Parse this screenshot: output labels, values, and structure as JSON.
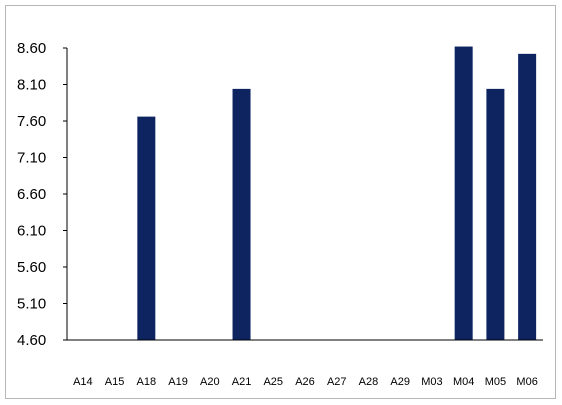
{
  "chart_data": {
    "type": "bar",
    "title": "",
    "xlabel": "",
    "ylabel": "",
    "ylim": [
      4.6,
      8.6
    ],
    "yticks": [
      "4.60",
      "5.10",
      "5.60",
      "6.10",
      "6.60",
      "7.10",
      "7.60",
      "8.10",
      "8.60"
    ],
    "grid": false,
    "legend": "none",
    "bar_color": "#0d2461",
    "categories": [
      "A14",
      "A15",
      "A18",
      "A19",
      "A20",
      "A21",
      "A25",
      "A26",
      "A27",
      "A28",
      "A29",
      "M03",
      "M04",
      "M05",
      "M06"
    ],
    "values": [
      null,
      null,
      7.66,
      null,
      null,
      8.04,
      null,
      null,
      null,
      null,
      null,
      null,
      8.62,
      8.04,
      8.52
    ]
  }
}
